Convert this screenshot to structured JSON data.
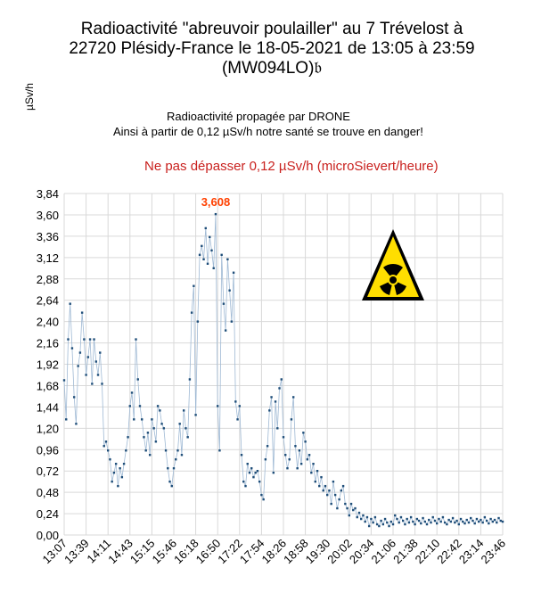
{
  "chart_data": {
    "type": "line",
    "title": "Radioactivité \"abreuvoir poulailler\" au 7 Trévelost à 22720 Plésidy-France le 18-05-2021 de 13:05 à 23:59 (MW094LO)𝔟",
    "ylabel": "µSv/h",
    "xlabel": "",
    "ylim": [
      0,
      3.84
    ],
    "yticks": [
      "0,00",
      "0,24",
      "0,48",
      "0,72",
      "0,96",
      "1,20",
      "1,44",
      "1,68",
      "1,92",
      "2,16",
      "2,40",
      "2,64",
      "2,88",
      "3,12",
      "3,36",
      "3,60",
      "3,84"
    ],
    "xticks": [
      "13:07",
      "13:39",
      "14:11",
      "14:43",
      "15:15",
      "15:46",
      "16:18",
      "16:50",
      "17:22",
      "17:54",
      "18:26",
      "18:58",
      "19:30",
      "20:02",
      "20:34",
      "21:06",
      "21:38",
      "22:10",
      "22:42",
      "23:14",
      "23:46"
    ],
    "annotations": [
      "Radioactivité propagée par DRONE",
      "Ainsi à partir de 0,12 µSv/h notre santé se trouve en danger!",
      "Ne pas dépasser 0,12 µSv/h (microSievert/heure)"
    ],
    "peak_label": "3,608",
    "grid": true,
    "series_color": "#1f4e79",
    "series": [
      {
        "values": [
          [
            0,
            1.74
          ],
          [
            1,
            1.3
          ],
          [
            2,
            2.2
          ],
          [
            3,
            2.6
          ],
          [
            4,
            2.1
          ],
          [
            5,
            1.55
          ],
          [
            6,
            1.25
          ],
          [
            7,
            1.9
          ],
          [
            8,
            2.05
          ],
          [
            9,
            2.5
          ],
          [
            10,
            2.2
          ],
          [
            11,
            1.8
          ],
          [
            12,
            2.0
          ],
          [
            13,
            2.2
          ],
          [
            14,
            1.7
          ],
          [
            15,
            2.2
          ],
          [
            16,
            1.95
          ],
          [
            17,
            1.8
          ],
          [
            18,
            2.05
          ],
          [
            19,
            1.7
          ],
          [
            20,
            1.0
          ],
          [
            21,
            1.05
          ],
          [
            22,
            0.95
          ],
          [
            23,
            0.85
          ],
          [
            24,
            0.6
          ],
          [
            25,
            0.7
          ],
          [
            26,
            0.8
          ],
          [
            27,
            0.55
          ],
          [
            28,
            0.75
          ],
          [
            29,
            0.65
          ],
          [
            30,
            0.8
          ],
          [
            31,
            0.95
          ],
          [
            32,
            1.1
          ],
          [
            33,
            1.45
          ],
          [
            34,
            1.6
          ],
          [
            35,
            1.3
          ],
          [
            36,
            2.2
          ],
          [
            37,
            1.75
          ],
          [
            38,
            1.45
          ],
          [
            39,
            1.3
          ],
          [
            40,
            1.1
          ],
          [
            41,
            0.95
          ],
          [
            42,
            1.15
          ],
          [
            43,
            0.9
          ],
          [
            44,
            1.3
          ],
          [
            45,
            1.2
          ],
          [
            46,
            1.05
          ],
          [
            47,
            1.45
          ],
          [
            48,
            1.4
          ],
          [
            49,
            1.25
          ],
          [
            50,
            1.2
          ],
          [
            51,
            0.95
          ],
          [
            52,
            0.75
          ],
          [
            53,
            0.6
          ],
          [
            54,
            0.55
          ],
          [
            55,
            0.75
          ],
          [
            56,
            0.85
          ],
          [
            57,
            0.95
          ],
          [
            58,
            1.25
          ],
          [
            59,
            0.9
          ],
          [
            60,
            1.4
          ],
          [
            61,
            1.2
          ],
          [
            62,
            1.1
          ],
          [
            63,
            1.75
          ],
          [
            64,
            2.5
          ],
          [
            65,
            2.8
          ],
          [
            66,
            1.35
          ],
          [
            67,
            2.4
          ],
          [
            68,
            3.15
          ],
          [
            69,
            3.25
          ],
          [
            70,
            3.1
          ],
          [
            71,
            3.45
          ],
          [
            72,
            3.05
          ],
          [
            73,
            3.35
          ],
          [
            74,
            3.2
          ],
          [
            75,
            3.0
          ],
          [
            76,
            3.608
          ],
          [
            77,
            1.45
          ],
          [
            78,
            0.95
          ],
          [
            79,
            3.15
          ],
          [
            80,
            2.6
          ],
          [
            81,
            2.3
          ],
          [
            82,
            3.1
          ],
          [
            83,
            2.75
          ],
          [
            84,
            2.4
          ],
          [
            85,
            2.95
          ],
          [
            86,
            1.5
          ],
          [
            87,
            1.3
          ],
          [
            88,
            1.45
          ],
          [
            89,
            0.9
          ],
          [
            90,
            0.6
          ],
          [
            91,
            0.55
          ],
          [
            92,
            0.8
          ],
          [
            93,
            0.7
          ],
          [
            94,
            0.75
          ],
          [
            95,
            0.65
          ],
          [
            96,
            0.7
          ],
          [
            97,
            0.72
          ],
          [
            98,
            0.6
          ],
          [
            99,
            0.45
          ],
          [
            100,
            0.4
          ],
          [
            101,
            0.85
          ],
          [
            102,
            1.0
          ],
          [
            103,
            1.4
          ],
          [
            104,
            1.55
          ],
          [
            105,
            0.7
          ],
          [
            106,
            1.5
          ],
          [
            107,
            1.2
          ],
          [
            108,
            1.65
          ],
          [
            109,
            1.75
          ],
          [
            110,
            1.1
          ],
          [
            111,
            0.9
          ],
          [
            112,
            0.75
          ],
          [
            113,
            0.85
          ],
          [
            114,
            1.3
          ],
          [
            115,
            1.55
          ],
          [
            116,
            1.0
          ],
          [
            117,
            0.75
          ],
          [
            118,
            0.95
          ],
          [
            119,
            0.8
          ],
          [
            120,
            1.15
          ],
          [
            121,
            1.05
          ],
          [
            122,
            0.85
          ],
          [
            123,
            0.9
          ],
          [
            124,
            0.7
          ],
          [
            125,
            0.8
          ],
          [
            126,
            0.6
          ],
          [
            127,
            0.72
          ],
          [
            128,
            0.55
          ],
          [
            129,
            0.65
          ],
          [
            130,
            0.5
          ],
          [
            131,
            0.55
          ],
          [
            132,
            0.45
          ],
          [
            133,
            0.5
          ],
          [
            134,
            0.35
          ],
          [
            135,
            0.6
          ],
          [
            136,
            0.45
          ],
          [
            137,
            0.3
          ],
          [
            138,
            0.4
          ],
          [
            139,
            0.5
          ],
          [
            140,
            0.55
          ],
          [
            141,
            0.35
          ],
          [
            142,
            0.3
          ],
          [
            143,
            0.22
          ],
          [
            144,
            0.35
          ],
          [
            145,
            0.28
          ],
          [
            146,
            0.3
          ],
          [
            147,
            0.2
          ],
          [
            148,
            0.25
          ],
          [
            149,
            0.18
          ],
          [
            150,
            0.22
          ],
          [
            151,
            0.15
          ],
          [
            152,
            0.2
          ],
          [
            153,
            0.1
          ],
          [
            154,
            0.18
          ],
          [
            155,
            0.14
          ],
          [
            156,
            0.2
          ],
          [
            157,
            0.12
          ],
          [
            158,
            0.1
          ],
          [
            159,
            0.16
          ],
          [
            160,
            0.12
          ],
          [
            161,
            0.18
          ],
          [
            162,
            0.14
          ],
          [
            163,
            0.1
          ],
          [
            164,
            0.15
          ],
          [
            165,
            0.12
          ],
          [
            166,
            0.22
          ],
          [
            167,
            0.18
          ],
          [
            168,
            0.14
          ],
          [
            169,
            0.2
          ],
          [
            170,
            0.16
          ],
          [
            171,
            0.12
          ],
          [
            172,
            0.18
          ],
          [
            173,
            0.14
          ],
          [
            174,
            0.2
          ],
          [
            175,
            0.15
          ],
          [
            176,
            0.12
          ],
          [
            177,
            0.18
          ],
          [
            178,
            0.16
          ],
          [
            179,
            0.13
          ],
          [
            180,
            0.19
          ],
          [
            181,
            0.15
          ],
          [
            182,
            0.12
          ],
          [
            183,
            0.17
          ],
          [
            184,
            0.14
          ],
          [
            185,
            0.2
          ],
          [
            186,
            0.16
          ],
          [
            187,
            0.13
          ],
          [
            188,
            0.18
          ],
          [
            189,
            0.15
          ],
          [
            190,
            0.2
          ],
          [
            191,
            0.14
          ],
          [
            192,
            0.12
          ],
          [
            193,
            0.17
          ],
          [
            194,
            0.15
          ],
          [
            195,
            0.19
          ],
          [
            196,
            0.14
          ],
          [
            197,
            0.16
          ],
          [
            198,
            0.12
          ],
          [
            199,
            0.18
          ],
          [
            200,
            0.15
          ],
          [
            201,
            0.13
          ],
          [
            202,
            0.17
          ],
          [
            203,
            0.14
          ],
          [
            204,
            0.19
          ],
          [
            205,
            0.16
          ],
          [
            206,
            0.13
          ],
          [
            207,
            0.18
          ],
          [
            208,
            0.15
          ],
          [
            209,
            0.17
          ],
          [
            210,
            0.14
          ],
          [
            211,
            0.2
          ],
          [
            212,
            0.16
          ],
          [
            213,
            0.13
          ],
          [
            214,
            0.18
          ],
          [
            215,
            0.15
          ],
          [
            216,
            0.17
          ],
          [
            217,
            0.14
          ],
          [
            218,
            0.19
          ],
          [
            219,
            0.16
          ],
          [
            220,
            0.15
          ]
        ]
      }
    ],
    "x_max": 220
  },
  "icon": "radioactive-warning-sign-icon"
}
